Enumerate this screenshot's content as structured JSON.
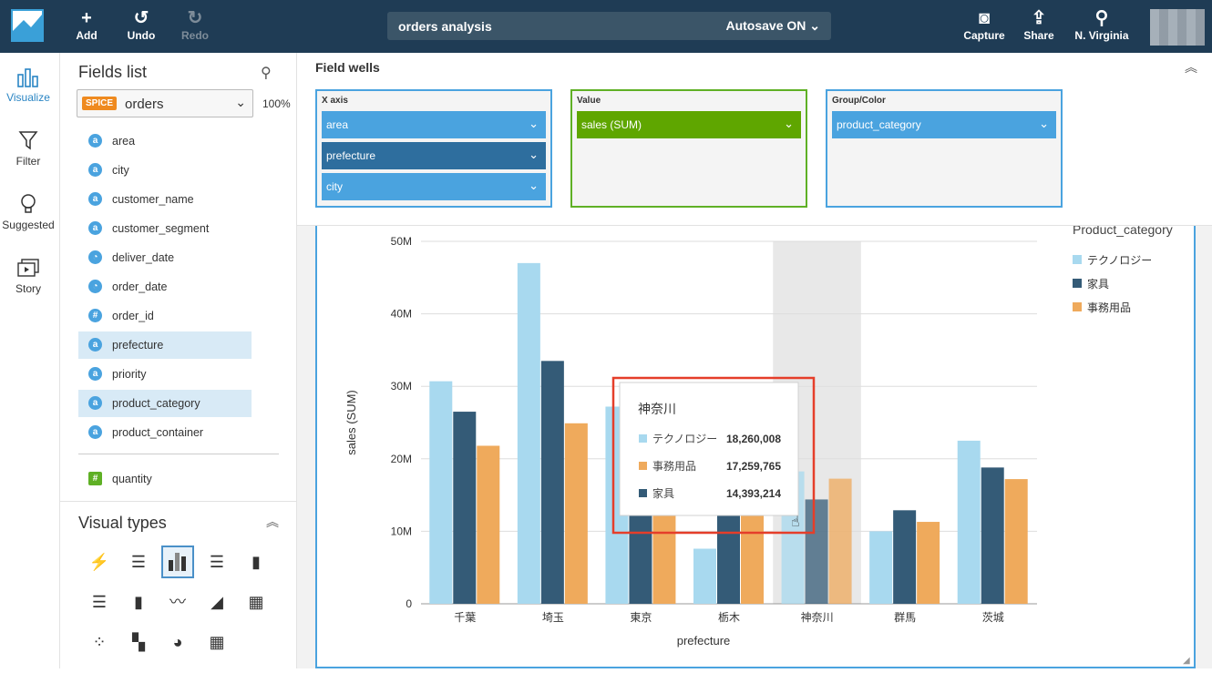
{
  "topbar": {
    "add_label": "Add",
    "undo_label": "Undo",
    "redo_label": "Redo",
    "analysis_name": "orders analysis",
    "autosave_label": "Autosave ON",
    "capture_label": "Capture",
    "share_label": "Share",
    "region_label": "N. Virginia"
  },
  "nav": {
    "visualize": "Visualize",
    "filter": "Filter",
    "suggested": "Suggested",
    "story": "Story"
  },
  "fields_panel": {
    "title": "Fields list",
    "spice_badge": "SPICE",
    "dataset": "orders",
    "percent": "100%",
    "fields": [
      {
        "name": "area",
        "type": "a"
      },
      {
        "name": "city",
        "type": "a"
      },
      {
        "name": "customer_name",
        "type": "a"
      },
      {
        "name": "customer_segment",
        "type": "a"
      },
      {
        "name": "deliver_date",
        "type": "date"
      },
      {
        "name": "order_date",
        "type": "date"
      },
      {
        "name": "order_id",
        "type": "#"
      },
      {
        "name": "prefecture",
        "type": "a"
      },
      {
        "name": "priority",
        "type": "a"
      },
      {
        "name": "product_category",
        "type": "a"
      },
      {
        "name": "product_container",
        "type": "a"
      }
    ],
    "measures": [
      {
        "name": "quantity",
        "type": "#"
      }
    ]
  },
  "visual_types": {
    "title": "Visual types"
  },
  "field_wells": {
    "title": "Field wells",
    "x_axis": {
      "label": "X axis",
      "items": [
        "area",
        "prefecture",
        "city"
      ]
    },
    "value": {
      "label": "Value",
      "items": [
        "sales (SUM)"
      ]
    },
    "group_color": {
      "label": "Group/Color",
      "items": [
        "product_category"
      ]
    }
  },
  "colors": {
    "technology": "#a8d9ef",
    "furniture": "#345b77",
    "office": "#efaa5c",
    "topbar": "#1f3c55",
    "accent": "#4aa3df"
  },
  "chart_data": {
    "type": "bar",
    "categories": [
      "千葉",
      "埼玉",
      "東京",
      "栃木",
      "神奈川",
      "群馬",
      "茨城"
    ],
    "series": [
      {
        "name": "テクノロジー",
        "values": [
          30700000,
          47000000,
          27200000,
          7600000,
          18260008,
          10000000,
          22500000
        ]
      },
      {
        "name": "家具",
        "values": [
          26500000,
          33500000,
          22000000,
          17000000,
          14393214,
          12900000,
          18800000
        ]
      },
      {
        "name": "事務用品",
        "values": [
          21800000,
          24900000,
          21500000,
          12700000,
          17259765,
          11300000,
          17200000
        ]
      }
    ],
    "xlabel": "prefecture",
    "ylabel": "sales (SUM)",
    "ylim": [
      0,
      50000000
    ],
    "yticks": [
      "0",
      "10M",
      "20M",
      "30M",
      "40M",
      "50M"
    ],
    "legend_title": "Product_category",
    "legend": [
      "テクノロジー",
      "家具",
      "事務用品"
    ],
    "grid": true,
    "highlight_category": "神奈川",
    "tooltip": {
      "title": "神奈川",
      "rows": [
        {
          "name": "テクノロジー",
          "value": "18,260,008"
        },
        {
          "name": "事務用品",
          "value": "17,259,765"
        },
        {
          "name": "家具",
          "value": "14,393,214"
        }
      ]
    }
  }
}
